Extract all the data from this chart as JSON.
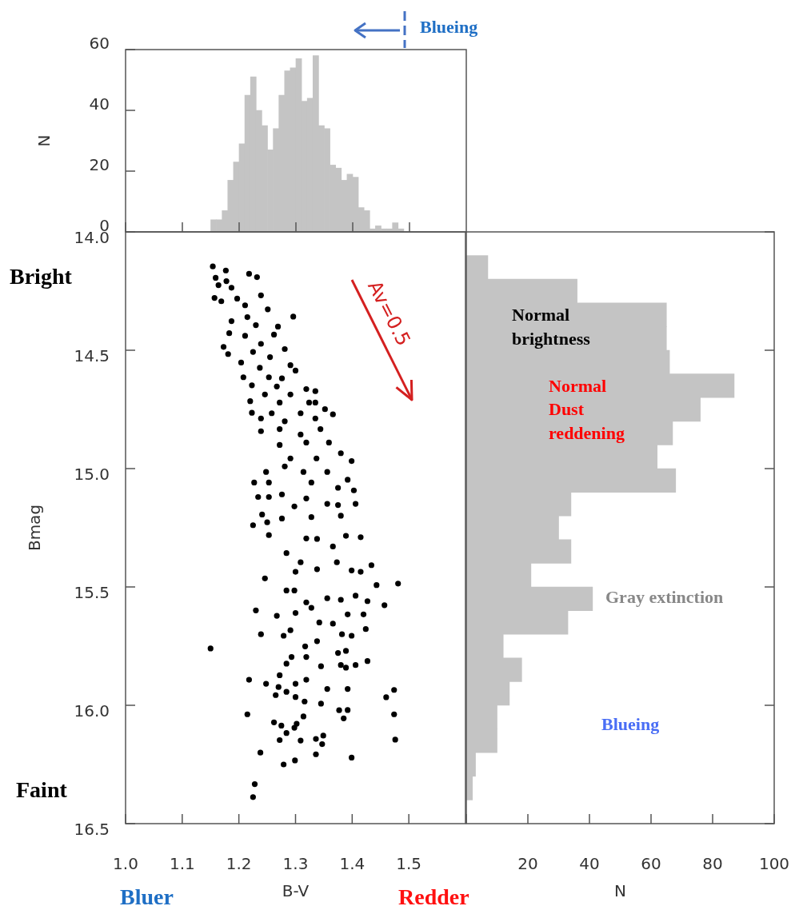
{
  "chart_data": [
    {
      "type": "histogram",
      "ylabel": "N",
      "xlim": [
        1.0,
        1.6
      ],
      "ylim": [
        0,
        60
      ],
      "xticks": [
        {
          "value": 1.0,
          "label": null
        },
        {
          "value": 1.1,
          "label": null
        },
        {
          "value": 1.2,
          "label": null
        },
        {
          "value": 1.3,
          "label": null
        },
        {
          "value": 1.4,
          "label": null
        },
        {
          "value": 1.5,
          "label": null
        }
      ],
      "yticks": [
        0,
        20,
        40,
        60
      ],
      "tick_labels": "y",
      "color": "#c4c4c4",
      "bins": [
        1.15,
        1.16,
        1.17,
        1.18,
        1.19,
        1.2,
        1.21,
        1.22,
        1.23,
        1.24,
        1.25,
        1.26,
        1.27,
        1.28,
        1.29,
        1.3,
        1.31,
        1.32,
        1.33,
        1.34,
        1.35,
        1.36,
        1.37,
        1.38,
        1.39,
        1.4,
        1.41,
        1.42,
        1.43,
        1.44,
        1.45,
        1.46,
        1.47,
        1.48,
        1.49
      ],
      "values": [
        4,
        4,
        7,
        17,
        23,
        29,
        45,
        51,
        40,
        35,
        27,
        34,
        45,
        53,
        54,
        57,
        43,
        44,
        58,
        35,
        34,
        22,
        21,
        17,
        19,
        18,
        8,
        7,
        1,
        2,
        1,
        1,
        3,
        1
      ],
      "annotations": [
        "Blueing"
      ]
    },
    {
      "type": "scatter",
      "xlabel": "B-V",
      "ylabel": "Bmag",
      "xlim": [
        1.0,
        1.6
      ],
      "ylim": [
        16.5,
        14.0
      ],
      "xticks": [
        {
          "value": 1.0,
          "label": "1.0"
        },
        1.1,
        1.2,
        1.3,
        1.4,
        1.5
      ],
      "yticks": [
        {
          "value": 14.0,
          "label": "14.0"
        },
        14.5,
        {
          "value": 15.0,
          "label": "15.0"
        },
        15.5,
        {
          "value": 16.0,
          "label": "16.0"
        },
        16.5
      ],
      "marker": "circle",
      "color": "#000000",
      "x": [
        1.154,
        1.177,
        1.218,
        1.232,
        1.159,
        1.178,
        1.164,
        1.187,
        1.239,
        1.157,
        1.197,
        1.169,
        1.211,
        1.251,
        1.296,
        1.215,
        1.187,
        1.23,
        1.269,
        1.183,
        1.262,
        1.211,
        1.173,
        1.239,
        1.281,
        1.181,
        1.225,
        1.255,
        1.204,
        1.291,
        1.237,
        1.3,
        1.208,
        1.253,
        1.276,
        1.223,
        1.267,
        1.319,
        1.335,
        1.246,
        1.291,
        1.22,
        1.272,
        1.324,
        1.335,
        1.223,
        1.258,
        1.309,
        1.352,
        1.366,
        1.239,
        1.281,
        1.335,
        1.239,
        1.272,
        1.309,
        1.344,
        1.272,
        1.319,
        1.359,
        1.38,
        1.399,
        1.291,
        1.337,
        1.227,
        1.248,
        1.281,
        1.314,
        1.356,
        1.392,
        1.253,
        1.328,
        1.375,
        1.403,
        1.234,
        1.253,
        1.276,
        1.319,
        1.298,
        1.356,
        1.375,
        1.406,
        1.241,
        1.328,
        1.38,
        1.225,
        1.25,
        1.276,
        1.253,
        1.284,
        1.319,
        1.338,
        1.366,
        1.389,
        1.415,
        1.246,
        1.309,
        1.3,
        1.338,
        1.373,
        1.399,
        1.415,
        1.434,
        1.481,
        1.443,
        1.284,
        1.298,
        1.319,
        1.328,
        1.356,
        1.38,
        1.406,
        1.427,
        1.457,
        1.23,
        1.267,
        1.3,
        1.342,
        1.366,
        1.392,
        1.42,
        1.424,
        1.239,
        1.279,
        1.291,
        1.15,
        1.338,
        1.317,
        1.382,
        1.399,
        1.375,
        1.389,
        1.293,
        1.284,
        1.319,
        1.345,
        1.38,
        1.389,
        1.406,
        1.427,
        1.218,
        1.272,
        1.248,
        1.3,
        1.319,
        1.27,
        1.265,
        1.284,
        1.356,
        1.392,
        1.474,
        1.46,
        1.3,
        1.316,
        1.345,
        1.377,
        1.392,
        1.215,
        1.474,
        1.314,
        1.385,
        1.262,
        1.275,
        1.302,
        1.298,
        1.284,
        1.349,
        1.336,
        1.347,
        1.272,
        1.309,
        1.476,
        1.238,
        1.336,
        1.399,
        1.279,
        1.299,
        1.228,
        1.225
      ],
      "values": [
        14.146,
        14.163,
        14.177,
        14.191,
        14.194,
        14.208,
        14.225,
        14.236,
        14.268,
        14.279,
        14.282,
        14.293,
        14.31,
        14.327,
        14.358,
        14.36,
        14.377,
        14.394,
        14.4,
        14.428,
        14.434,
        14.439,
        14.486,
        14.473,
        14.495,
        14.516,
        14.507,
        14.529,
        14.552,
        14.563,
        14.574,
        14.586,
        14.614,
        14.614,
        14.619,
        14.648,
        14.653,
        14.664,
        14.673,
        14.687,
        14.687,
        14.715,
        14.721,
        14.721,
        14.721,
        14.764,
        14.766,
        14.766,
        14.749,
        14.771,
        14.788,
        14.8,
        14.788,
        14.842,
        14.833,
        14.856,
        14.833,
        14.9,
        14.89,
        14.89,
        14.935,
        14.968,
        14.957,
        14.957,
        15.059,
        15.014,
        14.991,
        15.014,
        15.014,
        15.047,
        15.059,
        15.059,
        15.081,
        15.092,
        15.12,
        15.12,
        15.109,
        15.126,
        15.16,
        15.149,
        15.154,
        15.149,
        15.194,
        15.205,
        15.199,
        15.239,
        15.227,
        15.211,
        15.281,
        15.357,
        15.295,
        15.297,
        15.329,
        15.284,
        15.29,
        15.464,
        15.396,
        15.436,
        15.425,
        15.396,
        15.43,
        15.436,
        15.408,
        15.486,
        15.492,
        15.515,
        15.515,
        15.565,
        15.588,
        15.548,
        15.554,
        15.537,
        15.56,
        15.577,
        15.599,
        15.622,
        15.61,
        15.65,
        15.655,
        15.616,
        15.616,
        15.678,
        15.7,
        15.706,
        15.683,
        15.76,
        15.729,
        15.751,
        15.7,
        15.706,
        15.779,
        15.77,
        15.796,
        15.824,
        15.796,
        15.835,
        15.83,
        15.841,
        15.83,
        15.813,
        15.892,
        15.873,
        15.909,
        15.909,
        15.892,
        15.923,
        15.957,
        15.943,
        15.931,
        15.931,
        15.935,
        15.966,
        15.965,
        15.984,
        15.993,
        16.021,
        16.02,
        16.038,
        16.038,
        16.047,
        16.055,
        16.072,
        16.086,
        16.078,
        16.095,
        16.117,
        16.128,
        16.142,
        16.164,
        16.147,
        16.149,
        16.145,
        16.2,
        16.207,
        16.221,
        16.25,
        16.233,
        16.333,
        16.388
      ],
      "annotations": [
        "Bright",
        "Faint",
        "Av=0.5",
        "Bluer",
        "Redder"
      ]
    },
    {
      "type": "histogram",
      "orientation": "horizontal",
      "xlabel": "N",
      "xlim": [
        0,
        100
      ],
      "ylim": [
        16.5,
        14.0
      ],
      "xticks": [
        {
          "value": 0,
          "label": null
        },
        20,
        40,
        60,
        80,
        100
      ],
      "yticks": [
        {
          "value": 14.0,
          "label": null
        },
        {
          "value": 14.5,
          "label": null
        },
        {
          "value": 15.0,
          "label": null
        },
        {
          "value": 15.5,
          "label": null
        },
        {
          "value": 16.0,
          "label": null
        },
        {
          "value": 16.5,
          "label": null
        }
      ],
      "tick_labels": "x",
      "color": "#c4c4c4",
      "bins": [
        14.1,
        14.2,
        14.3,
        14.4,
        14.5,
        14.6,
        14.7,
        14.8,
        14.9,
        15.0,
        15.1,
        15.2,
        15.3,
        15.4,
        15.5,
        15.6,
        15.7,
        15.8,
        15.9,
        16.0,
        16.1,
        16.2,
        16.3,
        16.4
      ],
      "values": [
        7,
        36,
        65,
        65,
        66,
        87,
        76,
        67,
        62,
        68,
        34,
        30,
        34,
        21,
        41,
        33,
        12,
        18,
        14,
        10,
        10,
        3,
        2
      ],
      "annotations": [
        "Normal brightness",
        "Normal Dust reddening",
        "Gray extinction",
        "Blueing"
      ]
    }
  ]
}
